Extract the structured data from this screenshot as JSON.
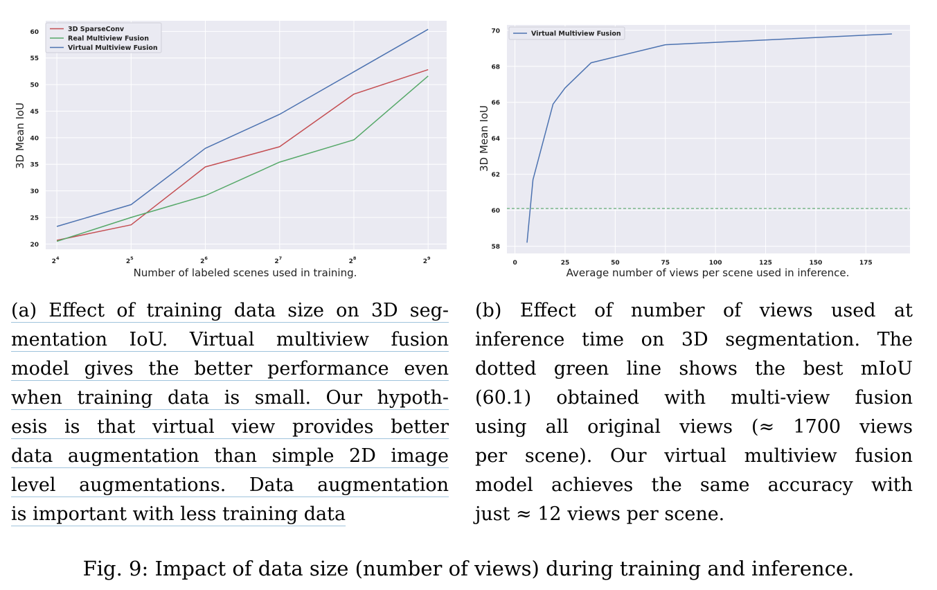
{
  "chart_data": [
    {
      "type": "line",
      "panel": "a",
      "x": [
        4,
        5,
        6,
        7,
        8,
        9
      ],
      "x_tick_labels": [
        "4",
        "5",
        "6",
        "7",
        "8",
        "9"
      ],
      "x_tick_base": "2",
      "series": [
        {
          "name": "3D SparseConv",
          "color": "#c44e52",
          "values": [
            20.7,
            23.6,
            34.5,
            38.3,
            48.2,
            52.8
          ]
        },
        {
          "name": "Real Multiview Fusion",
          "color": "#55a868",
          "values": [
            20.5,
            25.0,
            29.1,
            35.4,
            39.6,
            51.6
          ]
        },
        {
          "name": "Virtual Multiview Fusion",
          "color": "#4c72b0",
          "values": [
            23.3,
            27.4,
            38.0,
            44.4,
            52.4,
            60.4
          ]
        }
      ],
      "xlabel": "Number of labeled scenes used in training.",
      "ylabel": "3D Mean IoU",
      "xlim": [
        3.85,
        9.25
      ],
      "ylim": [
        19,
        62
      ],
      "yticks": [
        20,
        25,
        30,
        35,
        40,
        45,
        50,
        55,
        60
      ],
      "legend": "top-left",
      "grid": true
    },
    {
      "type": "line",
      "panel": "b",
      "series": [
        {
          "name": "Virtual Multiview Fusion",
          "color": "#4c72b0",
          "x": [
            6,
            9,
            19,
            25,
            38,
            75,
            188
          ],
          "values": [
            58.2,
            61.7,
            65.9,
            66.8,
            68.2,
            69.2,
            69.8
          ]
        }
      ],
      "reference_line": {
        "y": 60.1,
        "color": "#55a868",
        "style": "dashed"
      },
      "xlabel": "Average number of views per scene used in inference.",
      "ylabel": "3D Mean IoU",
      "xlim": [
        -4,
        197
      ],
      "ylim": [
        57.6,
        70.3
      ],
      "xticks": [
        0,
        25,
        50,
        75,
        100,
        125,
        150,
        175
      ],
      "yticks": [
        58,
        60,
        62,
        64,
        66,
        68,
        70
      ],
      "legend": "top-left",
      "grid": true
    }
  ],
  "captions": {
    "a": [
      "(a) Effect of training data size on 3D seg-",
      "mentation IoU. Virtual multiview fusion",
      "model gives the better performance even",
      "when training data is small. Our hypoth-",
      "esis is that virtual view provides better",
      "data augmentation than simple 2D image",
      "level augmentations. Data augmentation",
      "is important with less training data"
    ],
    "b": [
      "(b) Effect of number of views used at",
      "inference time on 3D segmentation. The",
      "dotted green line shows the best mIoU",
      "(60.1) obtained with multi-view fusion",
      "using all original views (≈ 1700 views",
      "per scene). Our virtual multiview fusion",
      "model achieves the same accuracy with",
      "just ≈ 12 views per scene."
    ]
  },
  "figure_caption": "Fig. 9: Impact of data size (number of views) during training and inference."
}
